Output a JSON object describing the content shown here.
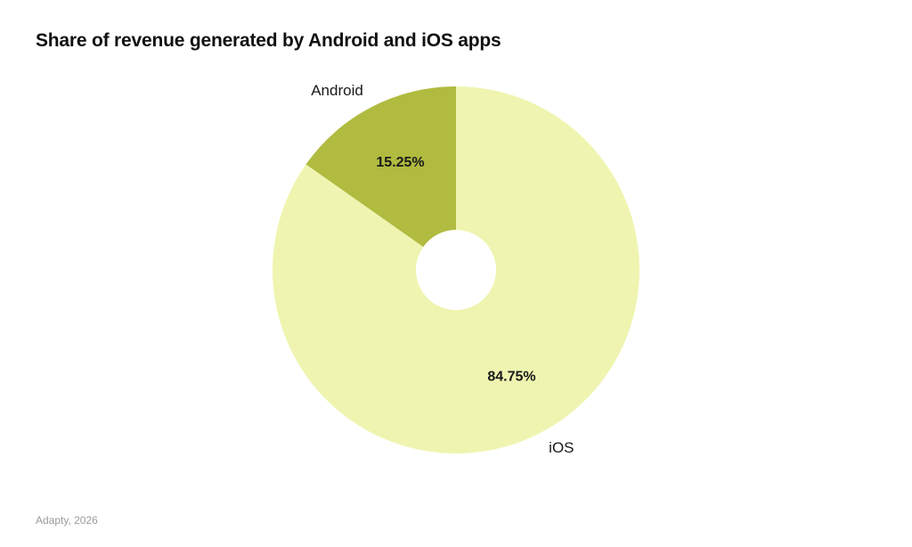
{
  "chart_data": {
    "type": "pie",
    "title": "Share of revenue generated by Android and iOS apps",
    "donut": true,
    "categories": [
      "Android",
      "iOS"
    ],
    "values": [
      15.25,
      84.75
    ],
    "value_labels": [
      "15.25%",
      "84.75%"
    ],
    "colors": [
      "#b0bb40",
      "#eff5b0"
    ],
    "start_angle": "12 o'clock",
    "direction": "counterclockwise",
    "legend": "none"
  },
  "source": "Adapty, 2026"
}
